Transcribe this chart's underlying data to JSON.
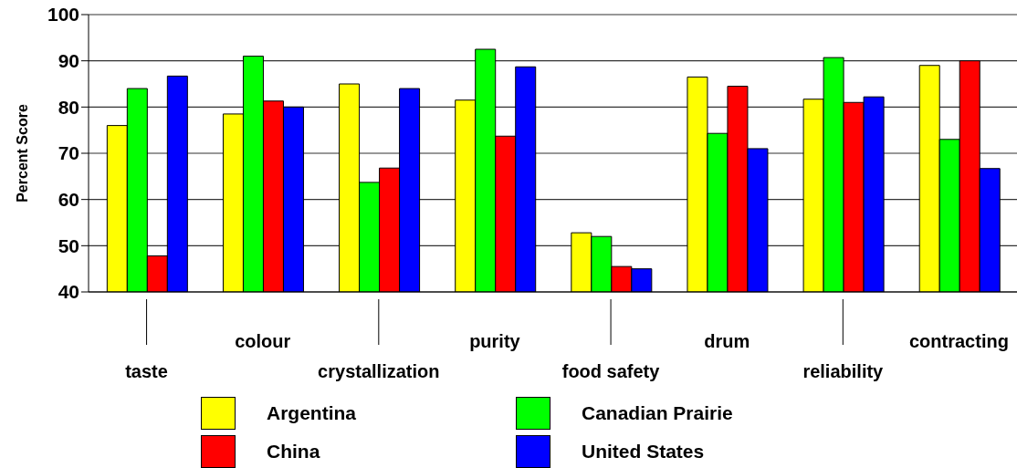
{
  "chart_data": {
    "type": "bar",
    "ylabel": "Percent Score",
    "categories": [
      "taste",
      "colour",
      "crystallization",
      "purity",
      "food safety",
      "drum",
      "reliability",
      "contracting"
    ],
    "series": [
      {
        "name": "Argentina",
        "color": "#ffff00",
        "values": [
          76,
          78.5,
          85,
          81.5,
          52.8,
          86.5,
          81.7,
          89
        ]
      },
      {
        "name": "Canadian Prairie",
        "color": "#00ff00",
        "values": [
          84,
          91,
          63.7,
          92.5,
          52,
          74.3,
          90.7,
          73
        ]
      },
      {
        "name": "China",
        "color": "#ff0000",
        "values": [
          47.8,
          81.3,
          66.8,
          73.7,
          45.5,
          84.5,
          81,
          90
        ]
      },
      {
        "name": "United States",
        "color": "#0000ff",
        "values": [
          86.7,
          80,
          84,
          88.7,
          45,
          71,
          82.2,
          66.7
        ]
      }
    ],
    "ylim": [
      40,
      100
    ],
    "yticks": [
      40,
      50,
      60,
      70,
      80,
      90,
      100
    ],
    "grid": "y",
    "legend": "bottom"
  }
}
